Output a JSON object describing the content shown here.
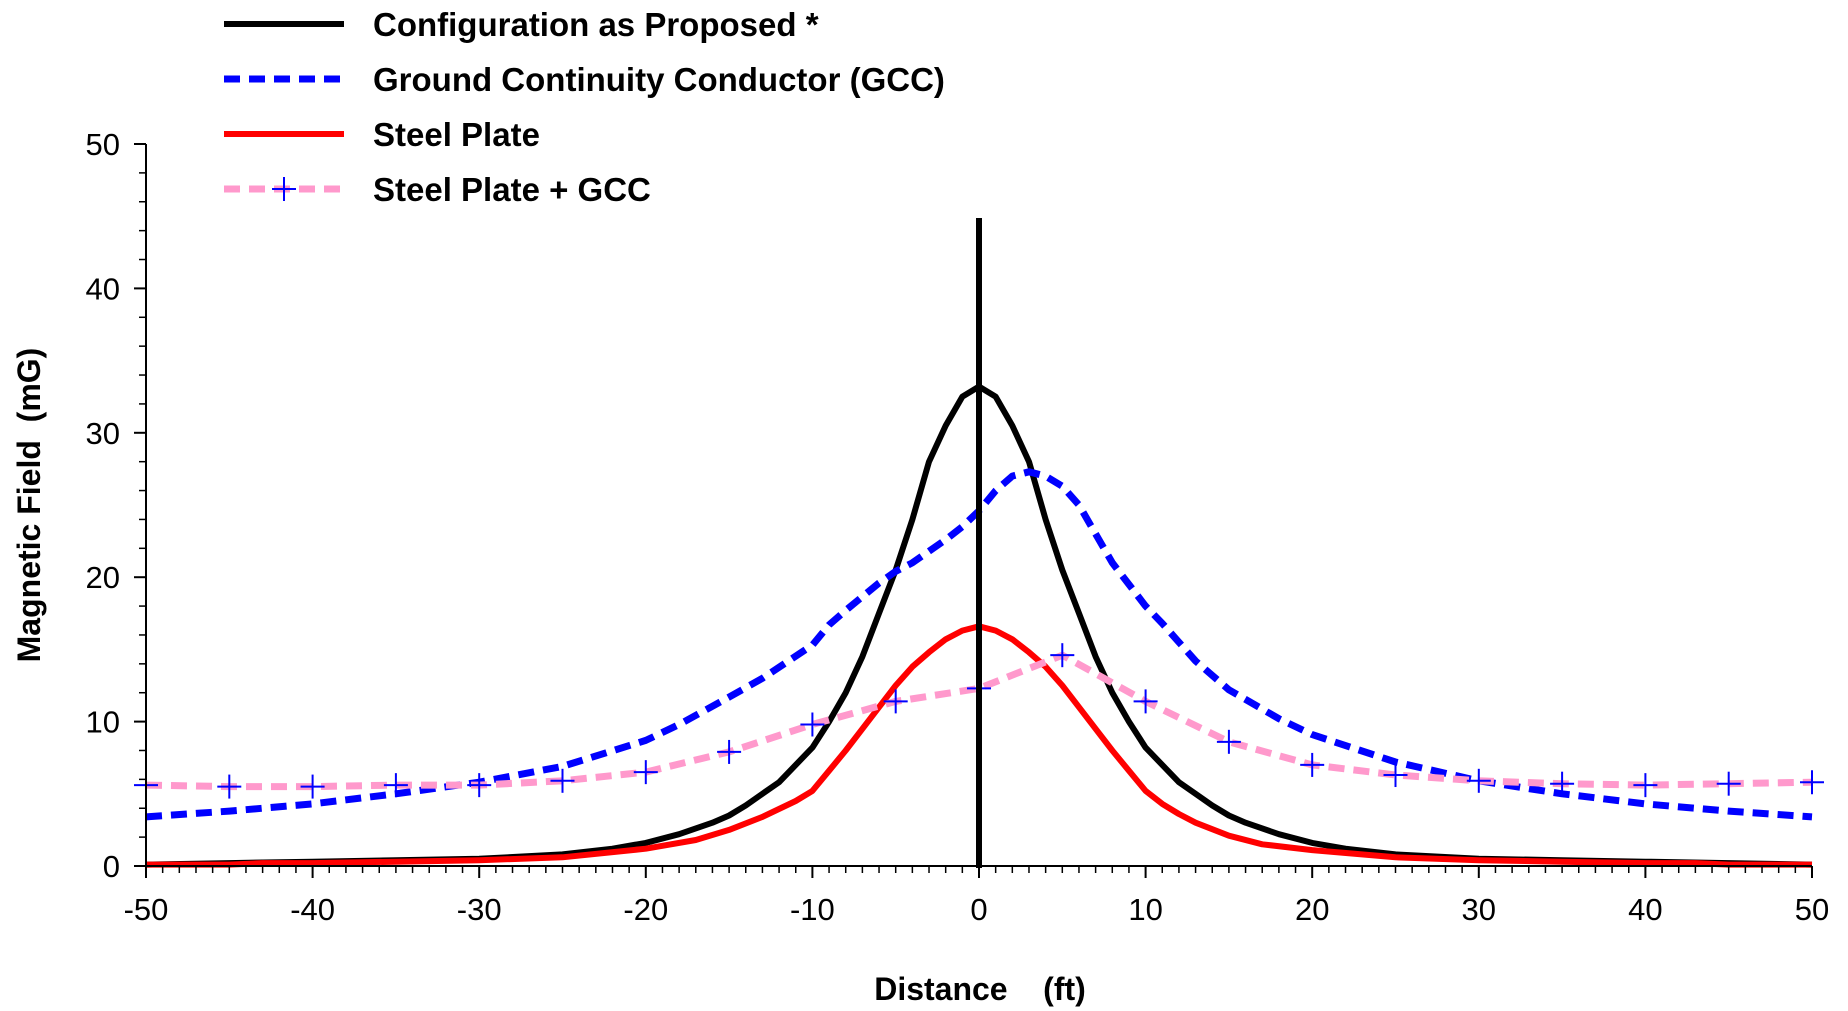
{
  "chart_data": {
    "type": "line",
    "xlabel": "Distance    (ft)",
    "ylabel": "Magnetic Field  (mG)",
    "xlim": [
      -50,
      50
    ],
    "ylim": [
      0,
      50
    ],
    "xticks": [
      -50,
      -40,
      -30,
      -20,
      -10,
      0,
      10,
      20,
      30,
      40,
      50
    ],
    "yticks": [
      0,
      10,
      20,
      30,
      40,
      50
    ],
    "grid": false,
    "legend_position": "top-left",
    "vertical_line_x": 0,
    "series": [
      {
        "name": "Configuration as Proposed *",
        "color": "#000000",
        "style": "solid",
        "x": [
          -50,
          -45,
          -40,
          -35,
          -30,
          -25,
          -22,
          -20,
          -18,
          -16,
          -15,
          -14,
          -13,
          -12,
          -11,
          -10,
          -9,
          -8,
          -7,
          -6,
          -5,
          -4,
          -3,
          -2,
          -1,
          0,
          1,
          2,
          3,
          4,
          5,
          6,
          7,
          8,
          9,
          10,
          11,
          12,
          13,
          14,
          15,
          16,
          18,
          20,
          22,
          25,
          30,
          35,
          40,
          45,
          50
        ],
        "y": [
          0.1,
          0.2,
          0.3,
          0.4,
          0.5,
          0.8,
          1.2,
          1.6,
          2.2,
          3.0,
          3.5,
          4.2,
          5.0,
          5.8,
          7.0,
          8.2,
          10.0,
          12.0,
          14.5,
          17.5,
          20.5,
          24.0,
          28.0,
          30.5,
          32.5,
          33.2,
          32.5,
          30.5,
          28.0,
          24.0,
          20.5,
          17.5,
          14.5,
          12.0,
          10.0,
          8.2,
          7.0,
          5.8,
          5.0,
          4.2,
          3.5,
          3.0,
          2.2,
          1.6,
          1.2,
          0.8,
          0.5,
          0.4,
          0.3,
          0.2,
          0.1
        ]
      },
      {
        "name": "Ground Continuity Conductor (GCC)",
        "color": "#0000ff",
        "style": "dashed",
        "x": [
          -50,
          -45,
          -40,
          -35,
          -30,
          -25,
          -20,
          -18,
          -15,
          -13,
          -10,
          -9,
          -8,
          -6,
          -5,
          -4,
          -3,
          -2,
          -1,
          0,
          1,
          2,
          3,
          4,
          5,
          6,
          7,
          8,
          9,
          10,
          11,
          12,
          13,
          15,
          18,
          20,
          25,
          30,
          35,
          40,
          45,
          50
        ],
        "y": [
          3.4,
          3.8,
          4.3,
          5.0,
          5.8,
          6.9,
          8.7,
          9.8,
          11.7,
          13.0,
          15.3,
          16.7,
          17.7,
          19.6,
          20.4,
          21.0,
          21.8,
          22.6,
          23.5,
          24.6,
          26.0,
          27.0,
          27.3,
          27.0,
          26.3,
          25.0,
          23.0,
          21.0,
          19.5,
          18.0,
          16.8,
          15.5,
          14.2,
          12.2,
          10.2,
          9.1,
          7.2,
          5.9,
          5.0,
          4.3,
          3.8,
          3.4
        ]
      },
      {
        "name": "Steel Plate",
        "color": "#ff0000",
        "style": "solid",
        "x": [
          -50,
          -45,
          -43,
          -40,
          -35,
          -30,
          -25,
          -20,
          -17,
          -15,
          -13,
          -11,
          -10,
          -9,
          -8,
          -7,
          -6,
          -5,
          -4,
          -3,
          -2,
          -1,
          0,
          1,
          2,
          3,
          4,
          5,
          6,
          7,
          8,
          9,
          10,
          11,
          12,
          13,
          15,
          17,
          20,
          25,
          30,
          35,
          40,
          43,
          45,
          50
        ],
        "y": [
          0.1,
          0.1,
          0.2,
          0.2,
          0.3,
          0.4,
          0.6,
          1.2,
          1.8,
          2.5,
          3.4,
          4.5,
          5.2,
          6.6,
          8.0,
          9.5,
          11.0,
          12.5,
          13.8,
          14.8,
          15.7,
          16.3,
          16.6,
          16.3,
          15.7,
          14.8,
          13.8,
          12.5,
          11.0,
          9.5,
          8.0,
          6.6,
          5.2,
          4.3,
          3.6,
          3.0,
          2.1,
          1.5,
          1.1,
          0.6,
          0.4,
          0.3,
          0.2,
          0.2,
          0.1,
          0.1
        ]
      },
      {
        "name": "Steel Plate + GCC",
        "color": "#ff99cc",
        "marker_color": "#0000ff",
        "style": "dashed",
        "marker": "plus",
        "x": [
          -50,
          -45,
          -40,
          -35,
          -30,
          -25,
          -20,
          -15,
          -10,
          -5,
          0,
          5,
          10,
          15,
          20,
          25,
          30,
          35,
          40,
          45,
          50
        ],
        "y": [
          5.6,
          5.5,
          5.5,
          5.6,
          5.6,
          5.9,
          6.5,
          7.9,
          9.8,
          11.4,
          12.3,
          14.6,
          11.4,
          8.6,
          7.0,
          6.3,
          5.9,
          5.7,
          5.6,
          5.7,
          5.8
        ]
      }
    ]
  }
}
